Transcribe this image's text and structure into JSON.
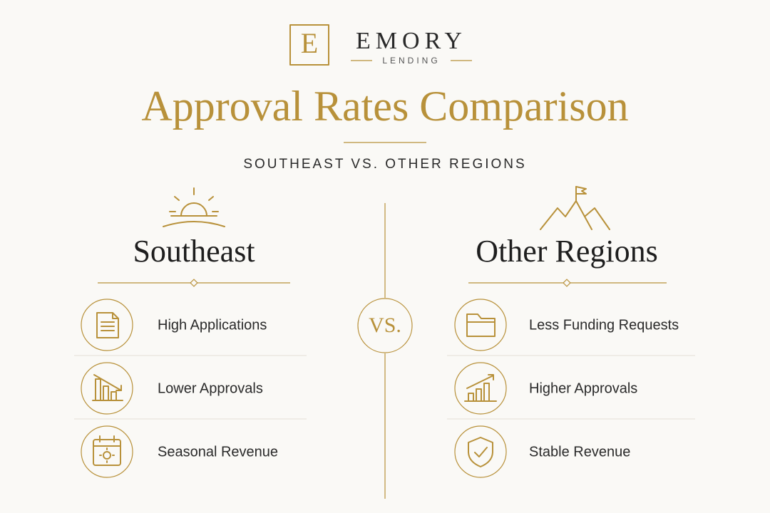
{
  "logo": {
    "letter": "E",
    "name": "EMORY",
    "subname": "LENDING"
  },
  "title": "Approval Rates Comparison",
  "subtitle": "SOUTHEAST VS. OTHER REGIONS",
  "vs": "VS.",
  "columns": [
    {
      "heading": "Southeast",
      "items": [
        "High Applications",
        "Lower Approvals",
        "Seasonal Revenue"
      ]
    },
    {
      "heading": "Other Regions",
      "items": [
        "Less Funding Requests",
        "Higher Approvals",
        "Stable Revenue"
      ]
    }
  ]
}
